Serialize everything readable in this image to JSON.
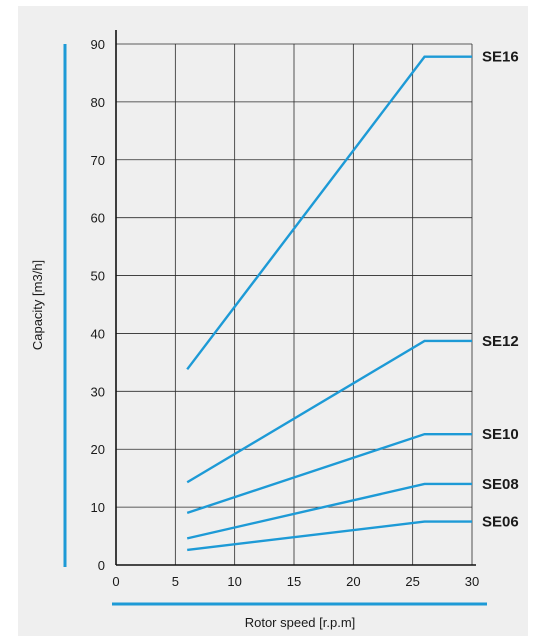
{
  "chart_data": {
    "type": "line",
    "title": "",
    "xlabel": "Rotor speed   [r.p.m]",
    "ylabel": "Capacity [m3/h]",
    "xlim": [
      0,
      30
    ],
    "ylim": [
      0,
      90
    ],
    "x_ticks": [
      "0",
      "5",
      "10",
      "15",
      "20",
      "25",
      "30"
    ],
    "y_ticks": [
      "0",
      "10",
      "20",
      "30",
      "40",
      "50",
      "60",
      "70",
      "80",
      "90"
    ],
    "grid": true,
    "legend": "labels at right end of each line",
    "line_color": "#1d9ad6",
    "series": [
      {
        "name": "SE16",
        "x": [
          6,
          26,
          30
        ],
        "y": [
          33.8,
          87.8,
          87.8
        ]
      },
      {
        "name": "SE12",
        "x": [
          6,
          26,
          30
        ],
        "y": [
          14.3,
          38.7,
          38.7
        ]
      },
      {
        "name": "SE10",
        "x": [
          6,
          26,
          30
        ],
        "y": [
          9.0,
          22.6,
          22.6
        ]
      },
      {
        "name": "SE08",
        "x": [
          6,
          26,
          30
        ],
        "y": [
          4.6,
          14.0,
          14.0
        ]
      },
      {
        "name": "SE06",
        "x": [
          6,
          26,
          30
        ],
        "y": [
          2.6,
          7.5,
          7.5
        ]
      }
    ]
  }
}
